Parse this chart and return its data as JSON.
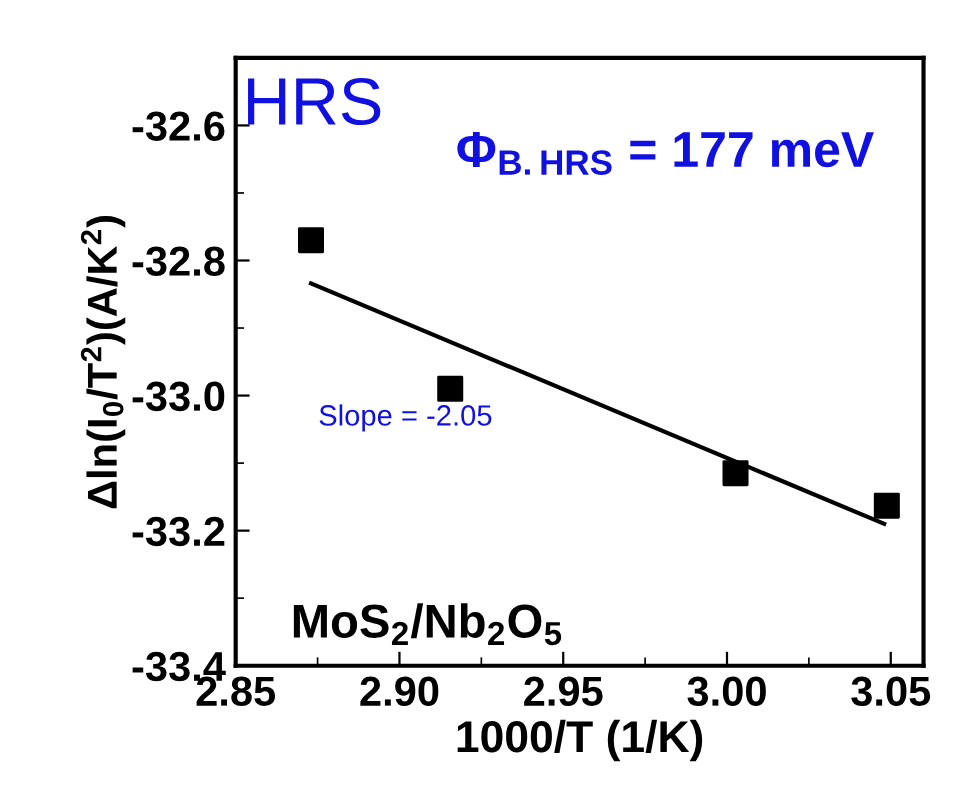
{
  "chart_data": {
    "type": "scatter",
    "xlabel": "1000/T (1/K)",
    "ylabel": "Δln(I$_{0}$/T$^{2}$)(A/K$^{2}$)",
    "series": [
      {
        "color": "#000000",
        "marker": "square",
        "x": [
          2.873,
          2.9155,
          3.0026,
          3.0488
        ],
        "values": [
          -32.77,
          -32.99,
          -33.115,
          -33.163
        ]
      },
      {
        "type": "line",
        "color": "#000000",
        "marker": "none",
        "line_style": "solid",
        "x": [
          2.873,
          3.048
        ],
        "values": [
          -32.834,
          -33.19
        ]
      }
    ],
    "annotations": [
      {
        "text": "HRS"
      },
      {
        "text": "Φ$_{B.HRS}$ = 177 meV"
      },
      {
        "text": "Slope = -2.05"
      },
      {
        "text": "MoS$_{2}$/Nb$_{2}$O$_{5}$"
      }
    ],
    "xlim": [
      2.85,
      3.06
    ],
    "ylim": [
      -33.4,
      -32.5
    ],
    "xticks": [
      {
        "value": 2.85,
        "label": "2.85"
      },
      {
        "value": 2.9,
        "label": "2.90"
      },
      {
        "value": 2.95,
        "label": "2.95"
      },
      {
        "value": 3.0,
        "label": "3.00"
      },
      {
        "value": 3.05,
        "label": "3.05"
      }
    ],
    "yticks": [
      {
        "value": -33.4,
        "label": "-33.4"
      },
      {
        "value": -33.2,
        "label": "-33.2"
      },
      {
        "value": -33.0,
        "label": "-33.0"
      },
      {
        "value": -32.8,
        "label": "-32.8"
      },
      {
        "value": -32.6,
        "label": "-32.6"
      }
    ],
    "grid": false
  }
}
